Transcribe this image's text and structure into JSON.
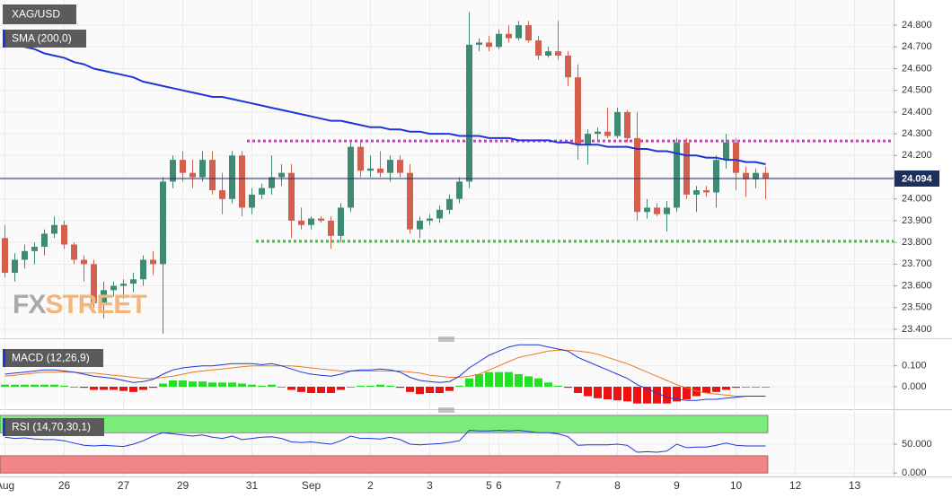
{
  "chart_data": [
    {
      "type": "candlestick",
      "title": "XAG/USD",
      "categories": [
        "Aug",
        null,
        null,
        null,
        null,
        null,
        "26",
        null,
        null,
        null,
        null,
        null,
        "27",
        null,
        null,
        null,
        null,
        null,
        "29",
        null,
        null,
        null,
        null,
        null,
        null,
        "31",
        null,
        null,
        null,
        null,
        null,
        "Sep",
        null,
        null,
        null,
        null,
        null,
        "2",
        null,
        null,
        null,
        null,
        null,
        "3",
        null,
        null,
        null,
        null,
        null,
        "5",
        "6",
        null,
        null,
        null,
        null,
        null,
        "7",
        null,
        null,
        null,
        null,
        null,
        "8",
        null,
        null,
        null,
        null,
        null,
        "9",
        null,
        null,
        null,
        null,
        null,
        "10",
        null,
        null,
        null,
        null,
        null,
        "12",
        null,
        null,
        null,
        null,
        null,
        "13",
        null,
        null,
        null
      ],
      "open": [
        23.82,
        23.66,
        23.72,
        23.76,
        23.78,
        23.84,
        23.88,
        23.79,
        23.72,
        23.7,
        23.52,
        23.58,
        23.6,
        23.61,
        23.63,
        23.72,
        23.7,
        24.08,
        24.18,
        24.12,
        24.1,
        24.18,
        24.04,
        24.0,
        24.2,
        23.96,
        24.02,
        24.05,
        24.1,
        24.12,
        23.9,
        23.88,
        23.91,
        23.9,
        23.83,
        23.96,
        24.24,
        24.13,
        24.14,
        24.12,
        24.18,
        24.12,
        23.86,
        23.9,
        23.91,
        23.95,
        24.0,
        24.08,
        24.71,
        24.72,
        24.7,
        24.76,
        24.74,
        24.8,
        24.73,
        24.66,
        24.68,
        24.66,
        24.56,
        24.25,
        24.3,
        24.31,
        24.29,
        24.4,
        24.28,
        23.94,
        23.96,
        23.93,
        23.96,
        24.26,
        24.02,
        24.04,
        24.03,
        24.18,
        24.26,
        24.12,
        24.09,
        24.12,
        null,
        null,
        null,
        null,
        null,
        null,
        null,
        null,
        null,
        null,
        null,
        null
      ],
      "high": [
        23.88,
        23.75,
        23.79,
        23.8,
        23.86,
        23.92,
        23.9,
        23.8,
        23.74,
        23.72,
        23.62,
        23.62,
        23.63,
        23.66,
        23.74,
        23.76,
        24.1,
        24.2,
        24.22,
        24.18,
        24.22,
        24.22,
        24.12,
        24.22,
        24.22,
        24.05,
        24.07,
        24.2,
        24.16,
        24.16,
        23.96,
        23.92,
        23.92,
        23.92,
        23.98,
        24.26,
        24.27,
        24.2,
        24.22,
        24.2,
        24.2,
        24.16,
        23.92,
        23.93,
        23.97,
        24.02,
        24.1,
        24.86,
        24.74,
        24.75,
        24.78,
        24.8,
        24.82,
        24.82,
        24.75,
        24.7,
        24.82,
        24.68,
        24.62,
        24.32,
        24.33,
        24.42,
        24.42,
        24.41,
        24.4,
        24.0,
        23.98,
        23.99,
        24.28,
        24.28,
        24.06,
        24.06,
        24.2,
        24.3,
        24.28,
        24.15,
        24.14,
        24.15,
        null,
        null,
        null,
        null,
        null,
        null,
        null,
        null,
        null,
        null,
        null,
        null
      ],
      "low": [
        23.64,
        23.62,
        23.68,
        23.7,
        23.74,
        23.82,
        23.77,
        23.7,
        23.62,
        23.5,
        23.45,
        23.55,
        23.54,
        23.57,
        23.6,
        23.65,
        23.38,
        24.05,
        24.08,
        24.05,
        24.08,
        24.02,
        23.93,
        23.98,
        23.92,
        23.93,
        24.0,
        24.02,
        24.06,
        23.82,
        23.86,
        23.86,
        23.89,
        23.77,
        23.8,
        23.94,
        24.1,
        24.1,
        24.1,
        24.08,
        24.1,
        23.84,
        23.82,
        23.88,
        23.89,
        23.93,
        23.98,
        24.05,
        24.68,
        24.68,
        24.69,
        24.72,
        24.73,
        24.72,
        24.64,
        24.65,
        24.64,
        24.52,
        24.18,
        24.16,
        24.27,
        24.28,
        24.28,
        24.26,
        23.9,
        23.91,
        23.92,
        23.85,
        23.94,
        24.0,
        23.94,
        24.01,
        23.96,
        24.14,
        24.04,
        24.01,
        24.05,
        24.0,
        null,
        null,
        null,
        null,
        null,
        null,
        null,
        null,
        null,
        null,
        null,
        null
      ],
      "close": [
        23.66,
        23.72,
        23.76,
        23.78,
        23.84,
        23.88,
        23.79,
        23.72,
        23.7,
        23.52,
        23.58,
        23.6,
        23.61,
        23.63,
        23.72,
        23.7,
        24.08,
        24.18,
        24.12,
        24.1,
        24.18,
        24.04,
        24.0,
        24.2,
        23.96,
        24.02,
        24.05,
        24.1,
        24.12,
        23.9,
        23.88,
        23.91,
        23.9,
        23.83,
        23.96,
        24.24,
        24.13,
        24.14,
        24.12,
        24.18,
        24.12,
        23.86,
        23.9,
        23.91,
        23.95,
        24.0,
        24.08,
        24.71,
        24.72,
        24.7,
        24.76,
        24.74,
        24.8,
        24.73,
        24.66,
        24.68,
        24.66,
        24.56,
        24.25,
        24.3,
        24.31,
        24.29,
        24.4,
        24.28,
        23.94,
        23.96,
        23.93,
        23.96,
        24.26,
        24.02,
        24.04,
        24.03,
        24.18,
        24.26,
        24.12,
        24.09,
        24.12,
        24.094,
        null,
        null,
        null,
        null,
        null,
        null,
        null,
        null,
        null,
        null,
        null,
        null
      ],
      "up_color": "#3e8a72",
      "down_color": "#d35f4f",
      "overlays": [
        {
          "name": "SMA (200,0)",
          "color": "#1d36d8",
          "values": [
            24.73,
            24.72,
            24.7,
            24.69,
            24.67,
            24.66,
            24.65,
            24.63,
            24.62,
            24.6,
            24.59,
            24.58,
            24.57,
            24.56,
            24.54,
            24.53,
            24.52,
            24.51,
            24.5,
            24.49,
            24.48,
            24.47,
            24.47,
            24.46,
            24.45,
            24.44,
            24.43,
            24.42,
            24.41,
            24.4,
            24.39,
            24.38,
            24.37,
            24.36,
            24.36,
            24.35,
            24.34,
            24.33,
            24.33,
            24.32,
            24.32,
            24.31,
            24.31,
            24.3,
            24.3,
            24.3,
            24.29,
            24.29,
            24.29,
            24.28,
            24.28,
            24.28,
            24.27,
            24.27,
            24.27,
            24.27,
            24.26,
            24.26,
            24.25,
            24.25,
            24.25,
            24.24,
            24.24,
            24.24,
            24.23,
            24.23,
            24.22,
            24.22,
            24.21,
            24.2,
            24.2,
            24.19,
            24.19,
            24.18,
            24.18,
            24.17,
            24.17,
            24.16,
            null,
            null,
            null,
            null,
            null,
            null,
            null,
            null,
            null,
            null,
            null,
            null
          ]
        }
      ],
      "hlines": [
        {
          "value": 24.267,
          "color": "#e02ee0"
        },
        {
          "value": 23.805,
          "color": "#2ecc2e"
        }
      ],
      "last_price": 24.094,
      "watermark": [
        "FX",
        "STREET"
      ],
      "ylim": [
        23.375,
        24.916
      ],
      "yticks": [
        {
          "value": 23.4,
          "label": "23.400"
        },
        {
          "value": 23.5,
          "label": "23.500"
        },
        {
          "value": 23.6,
          "label": "23.600"
        },
        {
          "value": 23.7,
          "label": "23.700"
        },
        {
          "value": 23.8,
          "label": "23.800"
        },
        {
          "value": 23.9,
          "label": "23.900"
        },
        {
          "value": 24.0,
          "label": "24.000"
        },
        {
          "value": 24.1,
          "label": "24.100"
        },
        {
          "value": 24.2,
          "label": "24.200"
        },
        {
          "value": 24.3,
          "label": "24.300"
        },
        {
          "value": 24.4,
          "label": "24.400"
        },
        {
          "value": 24.5,
          "label": "24.500"
        },
        {
          "value": 24.6,
          "label": "24.600"
        },
        {
          "value": 24.7,
          "label": "24.700"
        },
        {
          "value": 24.8,
          "label": "24.800"
        }
      ],
      "grid": true
    },
    {
      "type": "macd",
      "title": "MACD (12,26,9)",
      "macd": {
        "color": "#1d36d8",
        "values": [
          0.06,
          0.065,
          0.07,
          0.075,
          0.08,
          0.08,
          0.075,
          0.07,
          0.06,
          0.05,
          0.045,
          0.04,
          0.03,
          0.02,
          0.025,
          0.035,
          0.06,
          0.08,
          0.09,
          0.095,
          0.1,
          0.1,
          0.105,
          0.11,
          0.11,
          0.11,
          0.105,
          0.11,
          0.1,
          0.085,
          0.07,
          0.06,
          0.055,
          0.05,
          0.06,
          0.075,
          0.08,
          0.08,
          0.085,
          0.08,
          0.07,
          0.045,
          0.03,
          0.025,
          0.02,
          0.025,
          0.05,
          0.09,
          0.12,
          0.15,
          0.17,
          0.19,
          0.2,
          0.2,
          0.2,
          0.19,
          0.18,
          0.17,
          0.14,
          0.12,
          0.1,
          0.08,
          0.06,
          0.04,
          0.01,
          -0.01,
          -0.03,
          -0.05,
          -0.06,
          -0.065,
          -0.065,
          -0.06,
          -0.06,
          -0.055,
          -0.05,
          -0.045,
          -0.045,
          -0.045,
          null,
          null,
          null,
          null,
          null,
          null,
          null,
          null,
          null,
          null,
          null,
          null
        ]
      },
      "signal": {
        "color": "#f07820",
        "values": [
          0.05,
          0.055,
          0.06,
          0.065,
          0.07,
          0.07,
          0.07,
          0.07,
          0.065,
          0.065,
          0.06,
          0.055,
          0.05,
          0.045,
          0.04,
          0.04,
          0.045,
          0.05,
          0.06,
          0.07,
          0.075,
          0.08,
          0.085,
          0.09,
          0.095,
          0.1,
          0.1,
          0.1,
          0.1,
          0.1,
          0.095,
          0.09,
          0.085,
          0.08,
          0.075,
          0.075,
          0.075,
          0.075,
          0.075,
          0.075,
          0.075,
          0.07,
          0.065,
          0.055,
          0.05,
          0.045,
          0.045,
          0.05,
          0.06,
          0.08,
          0.1,
          0.12,
          0.14,
          0.15,
          0.16,
          0.17,
          0.175,
          0.175,
          0.17,
          0.165,
          0.155,
          0.14,
          0.125,
          0.11,
          0.09,
          0.07,
          0.05,
          0.03,
          0.01,
          -0.005,
          -0.02,
          -0.03,
          -0.035,
          -0.04,
          -0.045,
          -0.045,
          -0.045,
          -0.045,
          null,
          null,
          null,
          null,
          null,
          null,
          null,
          null,
          null,
          null,
          null,
          null
        ]
      },
      "histogram": {
        "up_color": "#22e022",
        "down_color": "#ee1111",
        "values": [
          0.01,
          0.01,
          0.01,
          0.01,
          0.01,
          0.01,
          0.005,
          0,
          -0.005,
          -0.015,
          -0.015,
          -0.015,
          -0.02,
          -0.025,
          -0.015,
          -0.005,
          0.015,
          0.03,
          0.03,
          0.025,
          0.025,
          0.02,
          0.02,
          0.02,
          0.015,
          0.01,
          0.005,
          0.01,
          0,
          -0.015,
          -0.025,
          -0.03,
          -0.03,
          -0.03,
          -0.015,
          0,
          0.005,
          0.005,
          0.01,
          0.005,
          -0.005,
          -0.025,
          -0.035,
          -0.03,
          -0.03,
          -0.02,
          0.005,
          0.04,
          0.06,
          0.07,
          0.07,
          0.07,
          0.06,
          0.05,
          0.04,
          0.02,
          0.005,
          -0.005,
          -0.03,
          -0.045,
          -0.055,
          -0.06,
          -0.065,
          -0.07,
          -0.08,
          -0.08,
          -0.08,
          -0.08,
          -0.07,
          -0.06,
          -0.045,
          -0.03,
          -0.025,
          -0.015,
          -0.005,
          0,
          0,
          0,
          null,
          null,
          null,
          null,
          null,
          null,
          null,
          null,
          null,
          null,
          null,
          null
        ]
      },
      "ylim": [
        -0.09,
        0.21
      ],
      "yticks": [
        {
          "value": 0.1,
          "label": "0.100"
        },
        {
          "value": 0,
          "label": "0.000"
        }
      ],
      "grid": true
    },
    {
      "type": "line",
      "title": "RSI (14,70,30,1)",
      "color": "#1d36d8",
      "values": [
        62,
        60,
        61,
        59,
        58,
        58,
        56,
        52,
        48,
        47,
        48,
        47,
        46,
        50,
        56,
        64,
        70,
        68,
        66,
        64,
        66,
        62,
        60,
        64,
        58,
        60,
        62,
        63,
        60,
        54,
        53,
        54,
        52,
        50,
        56,
        64,
        60,
        60,
        59,
        62,
        58,
        50,
        49,
        50,
        51,
        53,
        56,
        74,
        73,
        73,
        74,
        73,
        74,
        72,
        70,
        70,
        68,
        63,
        48,
        49,
        49,
        49,
        50,
        48,
        36,
        37,
        36,
        38,
        50,
        44,
        45,
        45,
        48,
        52,
        48,
        47,
        47,
        47,
        null,
        null,
        null,
        null,
        null,
        null,
        null,
        null,
        null,
        null,
        null,
        null
      ],
      "bands": [
        {
          "from": 70,
          "to": 100,
          "color": "#7ced7c"
        },
        {
          "from": 0,
          "to": 30,
          "color": "#f28585"
        }
      ],
      "ylim": [
        -6,
        103
      ],
      "yticks": [
        {
          "value": 50,
          "label": "50.000"
        },
        {
          "value": 0,
          "label": "0.000"
        }
      ],
      "grid": true
    }
  ]
}
